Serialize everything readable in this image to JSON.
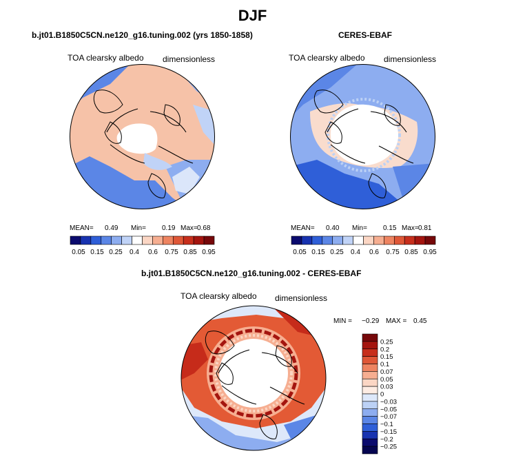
{
  "main_title": "DJF",
  "panels": [
    {
      "title": "b.jt01.B1850C5CN.ne120_g16.tuning.002 (yrs 1850-1858)",
      "left_label": "TOA clearsky albedo",
      "right_label": "dimensionless",
      "stats": {
        "mean_label": "MEAN=",
        "mean": "0.49",
        "min_label": "Min=",
        "min": "0.19",
        "max_label": "Max=",
        "max": "0.68"
      }
    },
    {
      "title": "CERES-EBAF",
      "left_label": "TOA clearsky albedo",
      "right_label": "dimensionless",
      "stats": {
        "mean_label": "MEAN=",
        "mean": "0.40",
        "min_label": "Min=",
        "min": "0.15",
        "max_label": "Max=",
        "max": "0.81"
      }
    },
    {
      "title": "b.jt01.B1850C5CN.ne120_g16.tuning.002 - CERES-EBAF",
      "left_label": "TOA clearsky albedo",
      "right_label": "dimensionless",
      "stats": {
        "min_label": "MIN =",
        "min": "−0.29",
        "max_label": "MAX =",
        "max": "0.45"
      }
    }
  ],
  "colorbar_abs": {
    "colors": [
      "#0b0b6e",
      "#1833b0",
      "#2f5fd8",
      "#5b86e6",
      "#8dadf0",
      "#c0d3f7",
      "#ffffff",
      "#fbd6c4",
      "#f6ae91",
      "#ee8461",
      "#df5737",
      "#c72f1c",
      "#a4150f",
      "#76080a"
    ],
    "tick_labels": [
      "0.05",
      "0.15",
      "0.25",
      "0.4",
      "0.6",
      "0.75",
      "0.85",
      "0.95"
    ]
  },
  "colorbar_diff": {
    "colors": [
      "#76080a",
      "#a4150f",
      "#c72f1c",
      "#df5737",
      "#ee8461",
      "#f6ae91",
      "#fbd6c4",
      "#fdece3",
      "#dde8fa",
      "#bcd1f5",
      "#8dadf0",
      "#5b86e6",
      "#2f5fd8",
      "#1833b0",
      "#0b0b6e",
      "#050550"
    ],
    "tick_labels": [
      "0.25",
      "0.2",
      "0.15",
      "0.1",
      "0.07",
      "0.05",
      "0.03",
      "0",
      "−0.03",
      "−0.05",
      "−0.07",
      "−0.1",
      "−0.15",
      "−0.2",
      "−0.25"
    ]
  },
  "map_colors": {
    "ocean_blue": "#6b93e8",
    "ocean_light": "#b9cdf4",
    "pale_blue": "#dbe6fa",
    "land_pink": "#f5c0a5",
    "land_salmon": "#f3ab8b",
    "deep_red": "#c62b1a",
    "mid_red": "#e35a35",
    "ice_white": "#ffffff",
    "coast": "#000000"
  }
}
